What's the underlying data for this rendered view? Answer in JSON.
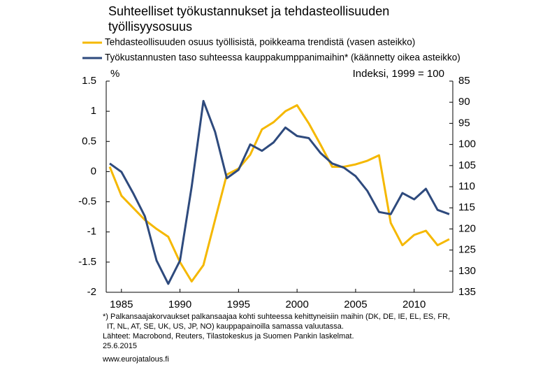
{
  "chart_data": {
    "type": "line",
    "title": [
      "Suhteelliset työkustannukset ja tehdasteollisuuden",
      "työllisyysosuus"
    ],
    "y_label": "%",
    "y2_label": "Indeksi, 1999 = 100",
    "x": [
      1984,
      1985,
      1986,
      1987,
      1988,
      1989,
      1990,
      1991,
      1992,
      1993,
      1994,
      1995,
      1996,
      1997,
      1998,
      1999,
      2000,
      2001,
      2002,
      2003,
      2004,
      2005,
      2006,
      2007,
      2008,
      2009,
      2010,
      2011,
      2012,
      2013
    ],
    "series": [
      {
        "name": "Tehdasteollisuuden osuus työllisistä, poikkeama trendistä (vasen asteikko)",
        "color": "#f5b800",
        "values": [
          0.08,
          -0.4,
          -0.6,
          -0.8,
          -0.95,
          -1.08,
          -1.5,
          -1.82,
          -1.55,
          -0.8,
          -0.05,
          0.05,
          0.28,
          0.7,
          0.82,
          1.0,
          1.1,
          0.8,
          0.45,
          0.08,
          0.08,
          0.12,
          0.18,
          0.27,
          -0.85,
          -1.22,
          -1.05,
          -0.98,
          -1.22,
          -1.12
        ]
      },
      {
        "name": "Työkustannusten taso suhteessa kauppakumppanimaihin* (käännetty oikea asteikko)",
        "color": "#2e4a7d",
        "axis": "y2",
        "values": [
          104.5,
          106.5,
          111.5,
          117,
          127.5,
          133,
          127.5,
          110,
          89.7,
          97,
          108,
          106,
          100,
          101.5,
          99.5,
          96,
          98,
          98.5,
          102,
          104.5,
          105.5,
          107.5,
          111,
          116,
          116.5,
          111.5,
          113,
          110.5,
          115.5,
          116.5
        ]
      }
    ],
    "xlim": [
      1983.7,
      2013.3
    ],
    "xticks": [
      1985,
      1990,
      1995,
      2000,
      2005,
      2010
    ],
    "ylim": [
      -2,
      1.5
    ],
    "yticks": [
      1.5,
      1,
      0.5,
      0,
      -0.5,
      -1,
      -1.5,
      -2
    ],
    "y2lim": [
      135,
      85
    ],
    "y2ticks": [
      85,
      90,
      95,
      100,
      105,
      110,
      115,
      120,
      125,
      130,
      135
    ],
    "notes": [
      "*) Palkansaajakorvaukset palkansaajaa kohti suhteessa kehittyneisiin maihin (DK, DE, IE, EL, ES, FR,",
      "IT, NL, AT, SE, UK, US, JP, NO) kauppapainoilla samassa valuutassa.",
      "Lähteet: Macrobond, Reuters, Tilastokeskus ja Suomen Pankin laskelmat.",
      "25.6.2015"
    ],
    "source_url": "www.eurojatalous.fi"
  }
}
